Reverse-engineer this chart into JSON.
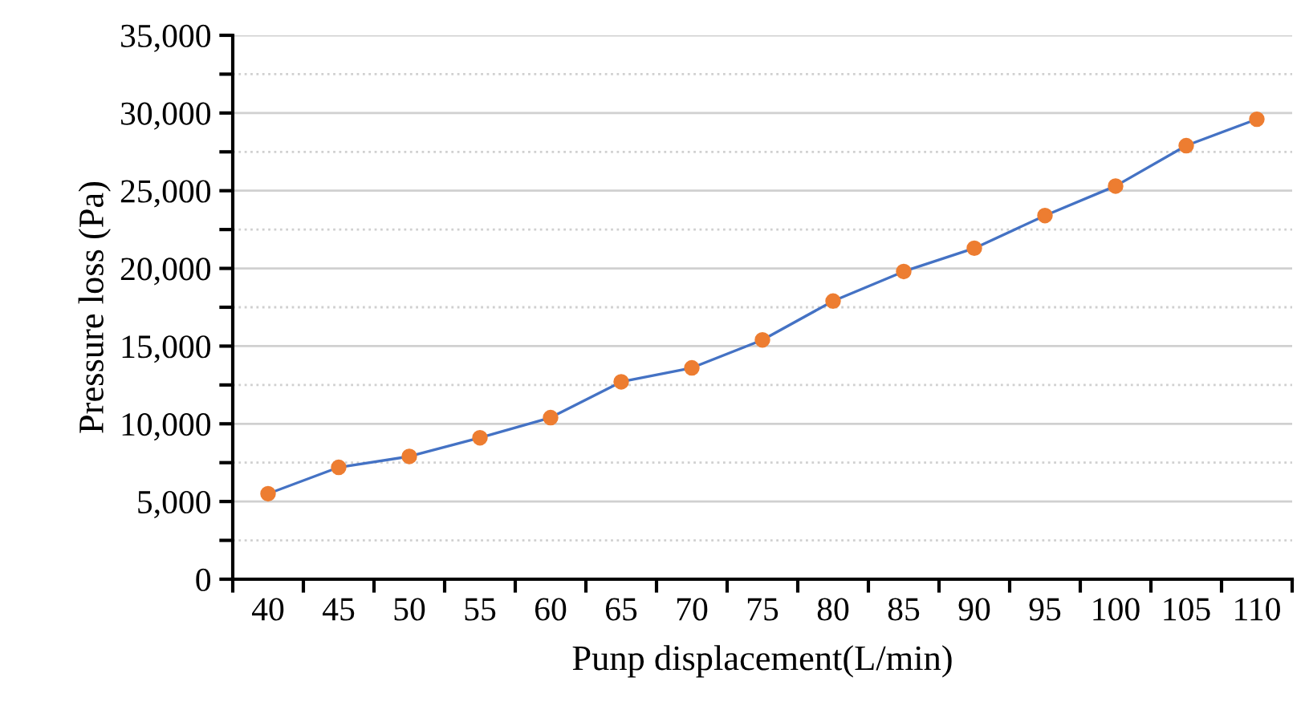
{
  "chart_data": {
    "type": "line",
    "xlabel": "Punp displacement(L/min)",
    "ylabel": "Pressure loss (Pa)",
    "categories": [
      "40",
      "45",
      "50",
      "55",
      "60",
      "65",
      "70",
      "75",
      "80",
      "85",
      "90",
      "95",
      "100",
      "105",
      "110"
    ],
    "series": [
      {
        "color": "#4472c4",
        "colors": [
          "#ed7d31",
          "#ed7d31",
          "#ed7d31",
          "#ed7d31",
          "#ed7d31",
          "#ed7d31",
          "#ed7d31",
          "#ed7d31",
          "#ed7d31",
          "#ed7d31",
          "#ed7d31",
          "#ed7d31",
          "#ed7d31",
          "#ed7d31",
          "#ed7d31"
        ],
        "values": [
          5500,
          7200,
          7900,
          9100,
          10400,
          12700,
          13600,
          15400,
          17900,
          19800,
          21300,
          23400,
          25300,
          27900,
          29600
        ]
      }
    ],
    "ylim": [
      0,
      35000
    ],
    "yticks": [
      {
        "value": 0,
        "label": "0"
      },
      {
        "value": 2500,
        "label": null
      },
      {
        "value": 5000,
        "label": "5,000"
      },
      {
        "value": 7500,
        "label": null
      },
      {
        "value": 10000,
        "label": "10,000"
      },
      {
        "value": 12500,
        "label": null
      },
      {
        "value": 15000,
        "label": "15,000"
      },
      {
        "value": 17500,
        "label": null
      },
      {
        "value": 20000,
        "label": "20,000"
      },
      {
        "value": 22500,
        "label": null
      },
      {
        "value": 25000,
        "label": "25,000"
      },
      {
        "value": 27500,
        "label": null
      },
      {
        "value": 30000,
        "label": "30,000"
      },
      {
        "value": 32500,
        "label": null
      },
      {
        "value": 35000,
        "label": "35,000"
      }
    ],
    "grid": "y",
    "marker": "circle",
    "line_style": "solid",
    "legend": false
  }
}
